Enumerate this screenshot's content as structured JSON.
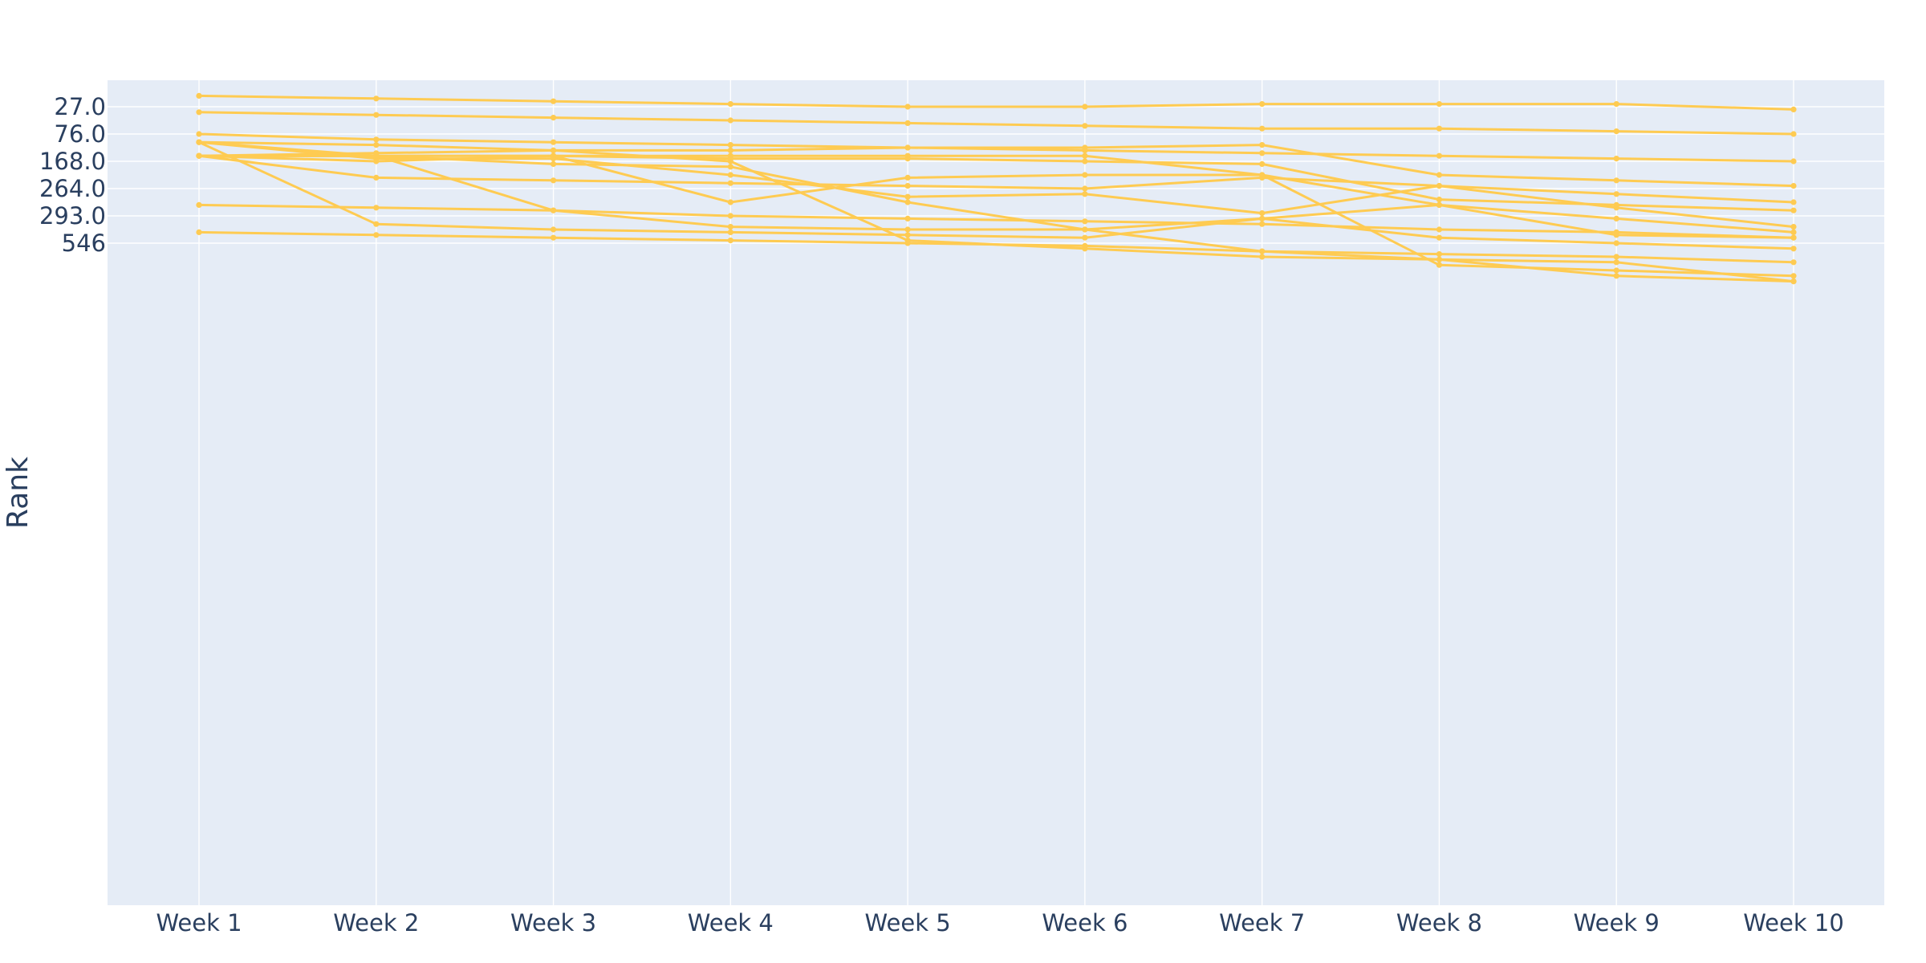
{
  "colors": {
    "plot_background": "#e5ecf6",
    "grid": "#ffffff",
    "line": "#fecb52",
    "text": "#2a3f5f"
  },
  "chart_data": {
    "type": "line",
    "title": "",
    "xlabel": "",
    "ylabel": "Rank",
    "grid": true,
    "legend": "none",
    "x": [
      "Week 1",
      "Week 2",
      "Week 3",
      "Week 4",
      "Week 5",
      "Week 6",
      "Week 7",
      "Week 8",
      "Week 9",
      "Week 10"
    ],
    "y_ticks": [
      "27.0",
      "76.0",
      "168.0",
      "264.0",
      "293.0",
      "546"
    ],
    "y_range": [
      -0.5,
      29.7
    ],
    "series": [
      {
        "values": [
          -0.4,
          -0.3,
          -0.2,
          -0.1,
          0.0,
          0.0,
          -0.1,
          -0.1,
          -0.1,
          0.1
        ]
      },
      {
        "values": [
          0.2,
          0.3,
          0.4,
          0.5,
          0.6,
          0.7,
          0.8,
          0.8,
          0.9,
          1.0
        ]
      },
      {
        "values": [
          1.0,
          1.2,
          1.3,
          1.4,
          1.5,
          1.6,
          1.7,
          1.8,
          1.9,
          2.0
        ]
      },
      {
        "values": [
          1.8,
          1.7,
          1.6,
          1.6,
          1.5,
          1.5,
          1.4,
          2.5,
          2.7,
          2.9
        ]
      },
      {
        "values": [
          1.8,
          1.8,
          1.8,
          1.9,
          1.9,
          2.0,
          2.1,
          3.4,
          3.6,
          3.8
        ]
      },
      {
        "values": [
          1.8,
          2.6,
          2.7,
          2.8,
          2.9,
          3.0,
          2.6,
          2.9,
          3.2,
          3.5
        ]
      },
      {
        "values": [
          1.8,
          2.0,
          1.8,
          3.5,
          2.6,
          2.5,
          2.5,
          3.6,
          4.1,
          4.6
        ]
      },
      {
        "values": [
          1.3,
          1.9,
          1.9,
          2.5,
          3.3,
          3.2,
          3.9,
          2.9,
          3.7,
          4.4
        ]
      },
      {
        "values": [
          1.8,
          1.8,
          2.1,
          2.2,
          3.5,
          4.5,
          4.1,
          4.8,
          5.0,
          5.2
        ]
      },
      {
        "values": [
          3.6,
          3.7,
          3.8,
          4.0,
          4.1,
          4.2,
          4.3,
          4.5,
          4.6,
          4.8
        ]
      },
      {
        "values": [
          1.3,
          4.3,
          4.5,
          4.6,
          4.7,
          4.8,
          4.1,
          3.6,
          4.7,
          4.8
        ]
      },
      {
        "values": [
          1.8,
          1.8,
          1.8,
          1.8,
          1.8,
          1.8,
          2.5,
          5.8,
          6.0,
          6.2
        ]
      },
      {
        "values": [
          1.3,
          1.8,
          3.8,
          4.4,
          4.5,
          4.5,
          5.3,
          5.6,
          5.7,
          6.4
        ]
      },
      {
        "values": [
          1.3,
          1.4,
          1.6,
          2.0,
          4.9,
          5.2,
          5.5,
          5.6,
          6.2,
          6.4
        ]
      },
      {
        "values": [
          4.6,
          4.7,
          4.8,
          4.9,
          5.0,
          5.1,
          5.3,
          5.4,
          5.5,
          5.7
        ]
      }
    ]
  }
}
